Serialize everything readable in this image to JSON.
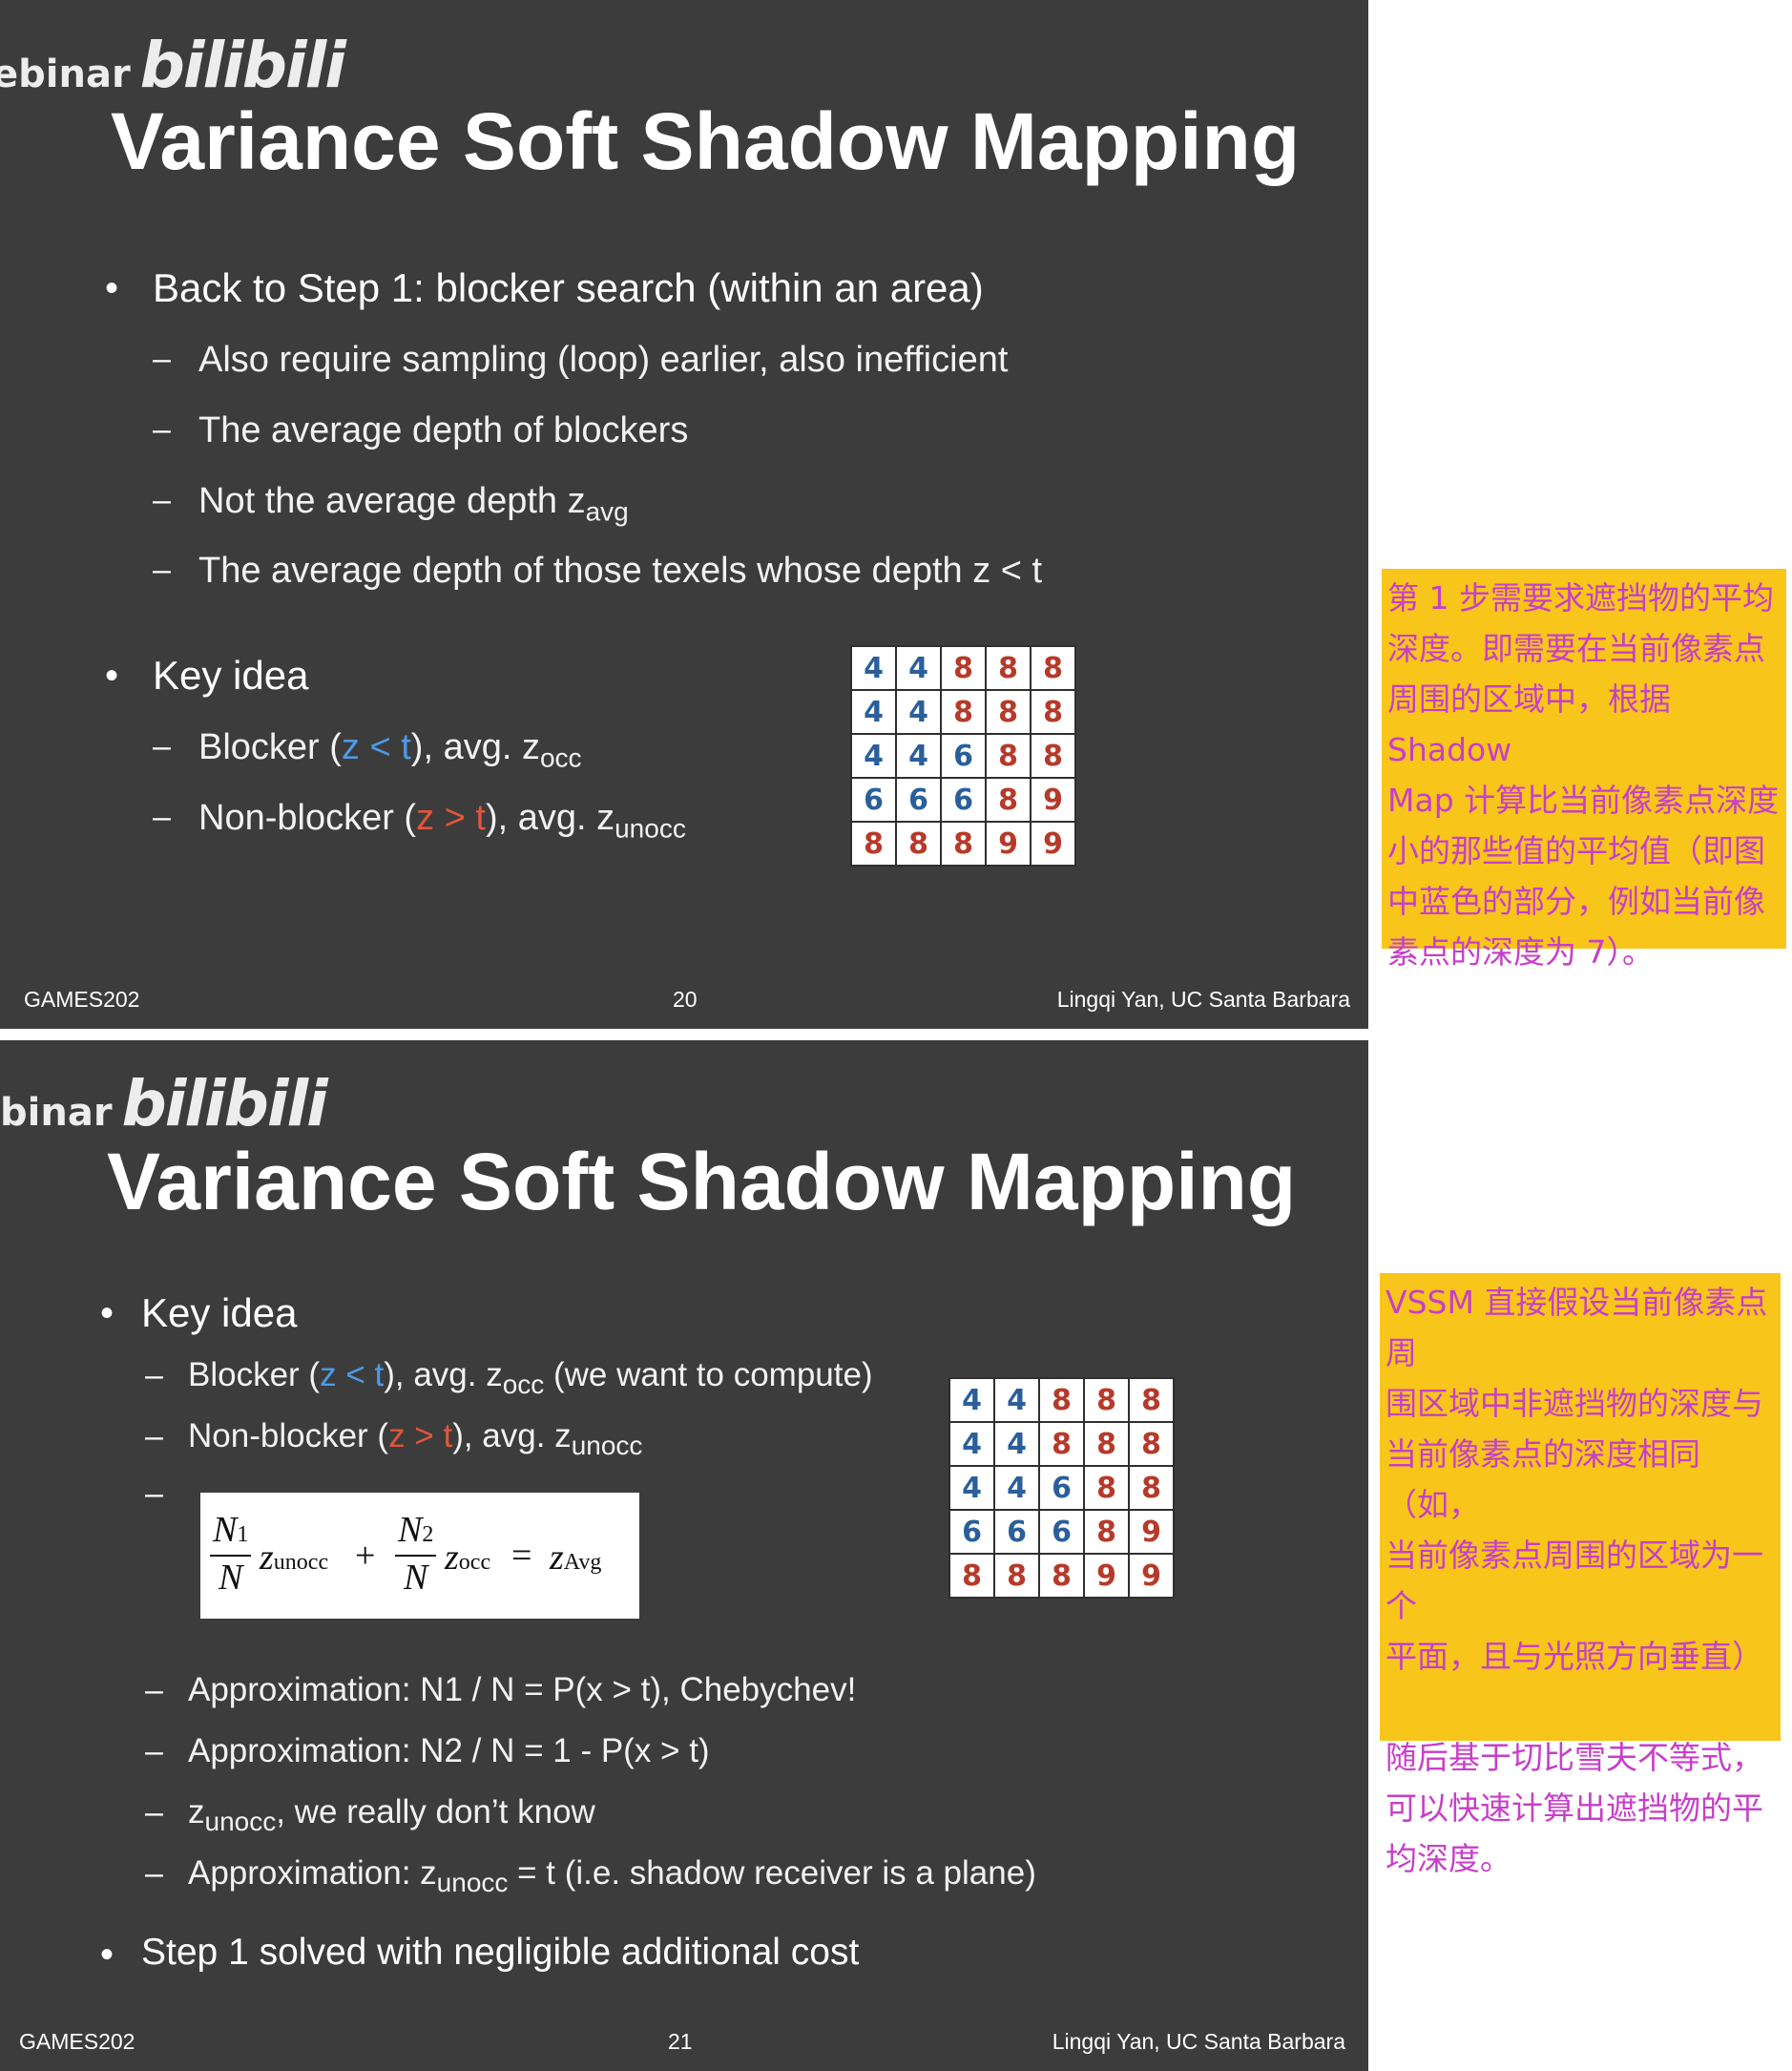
{
  "slide1": {
    "watermark_text": "ebinar",
    "watermark_logo": "bilibili",
    "title": "Variance Soft Shadow Mapping",
    "bullet1": "Back to Step 1: blocker search (within an area)",
    "sub1": "Also require sampling (loop) earlier, also inefficient",
    "sub2": "The average depth of blockers",
    "sub3_text": "Not the average depth z",
    "sub3_sub": "avg",
    "sub4": "The average depth of those texels whose depth z < t",
    "bullet2": "Key idea",
    "blocker": {
      "a": "Blocker (",
      "cond": "z < t",
      "b": "), avg. z",
      "sub": "occ"
    },
    "nonblocker": {
      "a": "Non-blocker (",
      "cond": "z > t",
      "b": "), avg. z",
      "sub": "unocc"
    },
    "grid": [
      [
        4,
        4,
        8,
        8,
        8
      ],
      [
        4,
        4,
        8,
        8,
        8
      ],
      [
        4,
        4,
        6,
        8,
        8
      ],
      [
        6,
        6,
        6,
        8,
        9
      ],
      [
        8,
        8,
        8,
        9,
        9
      ]
    ],
    "footer_left": "GAMES202",
    "footer_center": "20",
    "footer_right": "Lingqi Yan, UC Santa Barbara"
  },
  "slide2": {
    "watermark_text": "binar",
    "watermark_logo": "bilibili",
    "title": "Variance Soft Shadow Mapping",
    "bullet1": "Key idea",
    "blocker": {
      "a": "Blocker (",
      "cond": "z < t",
      "b": "), avg. z",
      "sub": "occ",
      "c": " (we want to compute)"
    },
    "nonblocker": {
      "a": "Non-blocker (",
      "cond": "z > t",
      "b": "), avg. z",
      "sub": "unocc"
    },
    "formula": {
      "n1": "N",
      "n1sub": "1",
      "d": "N",
      "t1": "z",
      "t1sub": "unocc",
      "plus": "+",
      "n2": "N",
      "n2sub": "2",
      "t2": "z",
      "t2sub": "occ",
      "eq": "=",
      "rhs": "z",
      "rhssub": "Avg"
    },
    "approx1": "Approximation: N1 / N = P(x > t), Chebychev!",
    "approx2": "Approximation: N2 / N = 1 - P(x > t)",
    "unocc_z": "z",
    "unocc_sub": "unocc",
    "unocc_text": ", we really don’t know",
    "approx3_a": "Approximation: z",
    "approx3_sub": "unocc",
    "approx3_b": " = t (i.e. shadow receiver is a plane)",
    "bullet2": "Step 1 solved with negligible additional cost",
    "grid": [
      [
        4,
        4,
        8,
        8,
        8
      ],
      [
        4,
        4,
        8,
        8,
        8
      ],
      [
        4,
        4,
        6,
        8,
        8
      ],
      [
        6,
        6,
        6,
        8,
        9
      ],
      [
        8,
        8,
        8,
        9,
        9
      ]
    ],
    "footer_left": "GAMES202",
    "footer_center": "21",
    "footer_right": "Lingqi Yan, UC Santa Barbara"
  },
  "note1": "第 1 步需要求遮挡物的平均\n深度。即需要在当前像素点\n周围的区域中，根据 Shadow\nMap 计算比当前像素点深度\n小的那些值的平均值（即图\n中蓝色的部分，例如当前像\n素点的深度为 7）。",
  "note2": "VSSM 直接假设当前像素点周\n围区域中非遮挡物的深度与\n当前像素点的深度相同（如，\n当前像素点周围的区域为一个\n平面，且与光照方向垂直）\n\n随后基于切比雪夫不等式，\n可以快速计算出遮挡物的平\n均深度。",
  "colors": {
    "slide_bg": "#3c3c3c",
    "note_bg": "#f8c51a",
    "note_text": "#c73fc8",
    "blue_digit": "#2b5f9a",
    "red_digit": "#b63a2a",
    "cond_blue": "#4d9be6",
    "cond_red": "#e2563a"
  }
}
